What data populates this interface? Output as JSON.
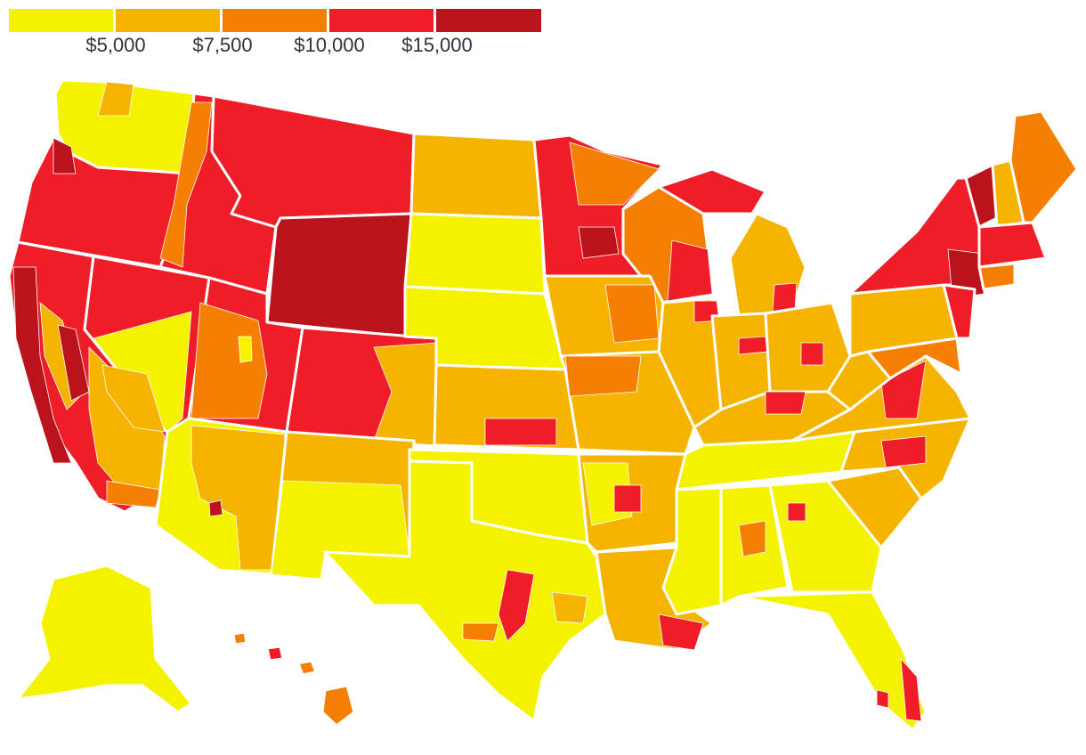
{
  "colors": {
    "bin1": "#f5f200",
    "bin2": "#f4b400",
    "bin3": "#f57f00",
    "bin4": "#ee1d27",
    "bin5": "#bb131c",
    "border": "#ffffff"
  },
  "legend": {
    "labels": [
      "$5,000",
      "$7,500",
      "$10,000",
      "$15,000"
    ]
  }
}
